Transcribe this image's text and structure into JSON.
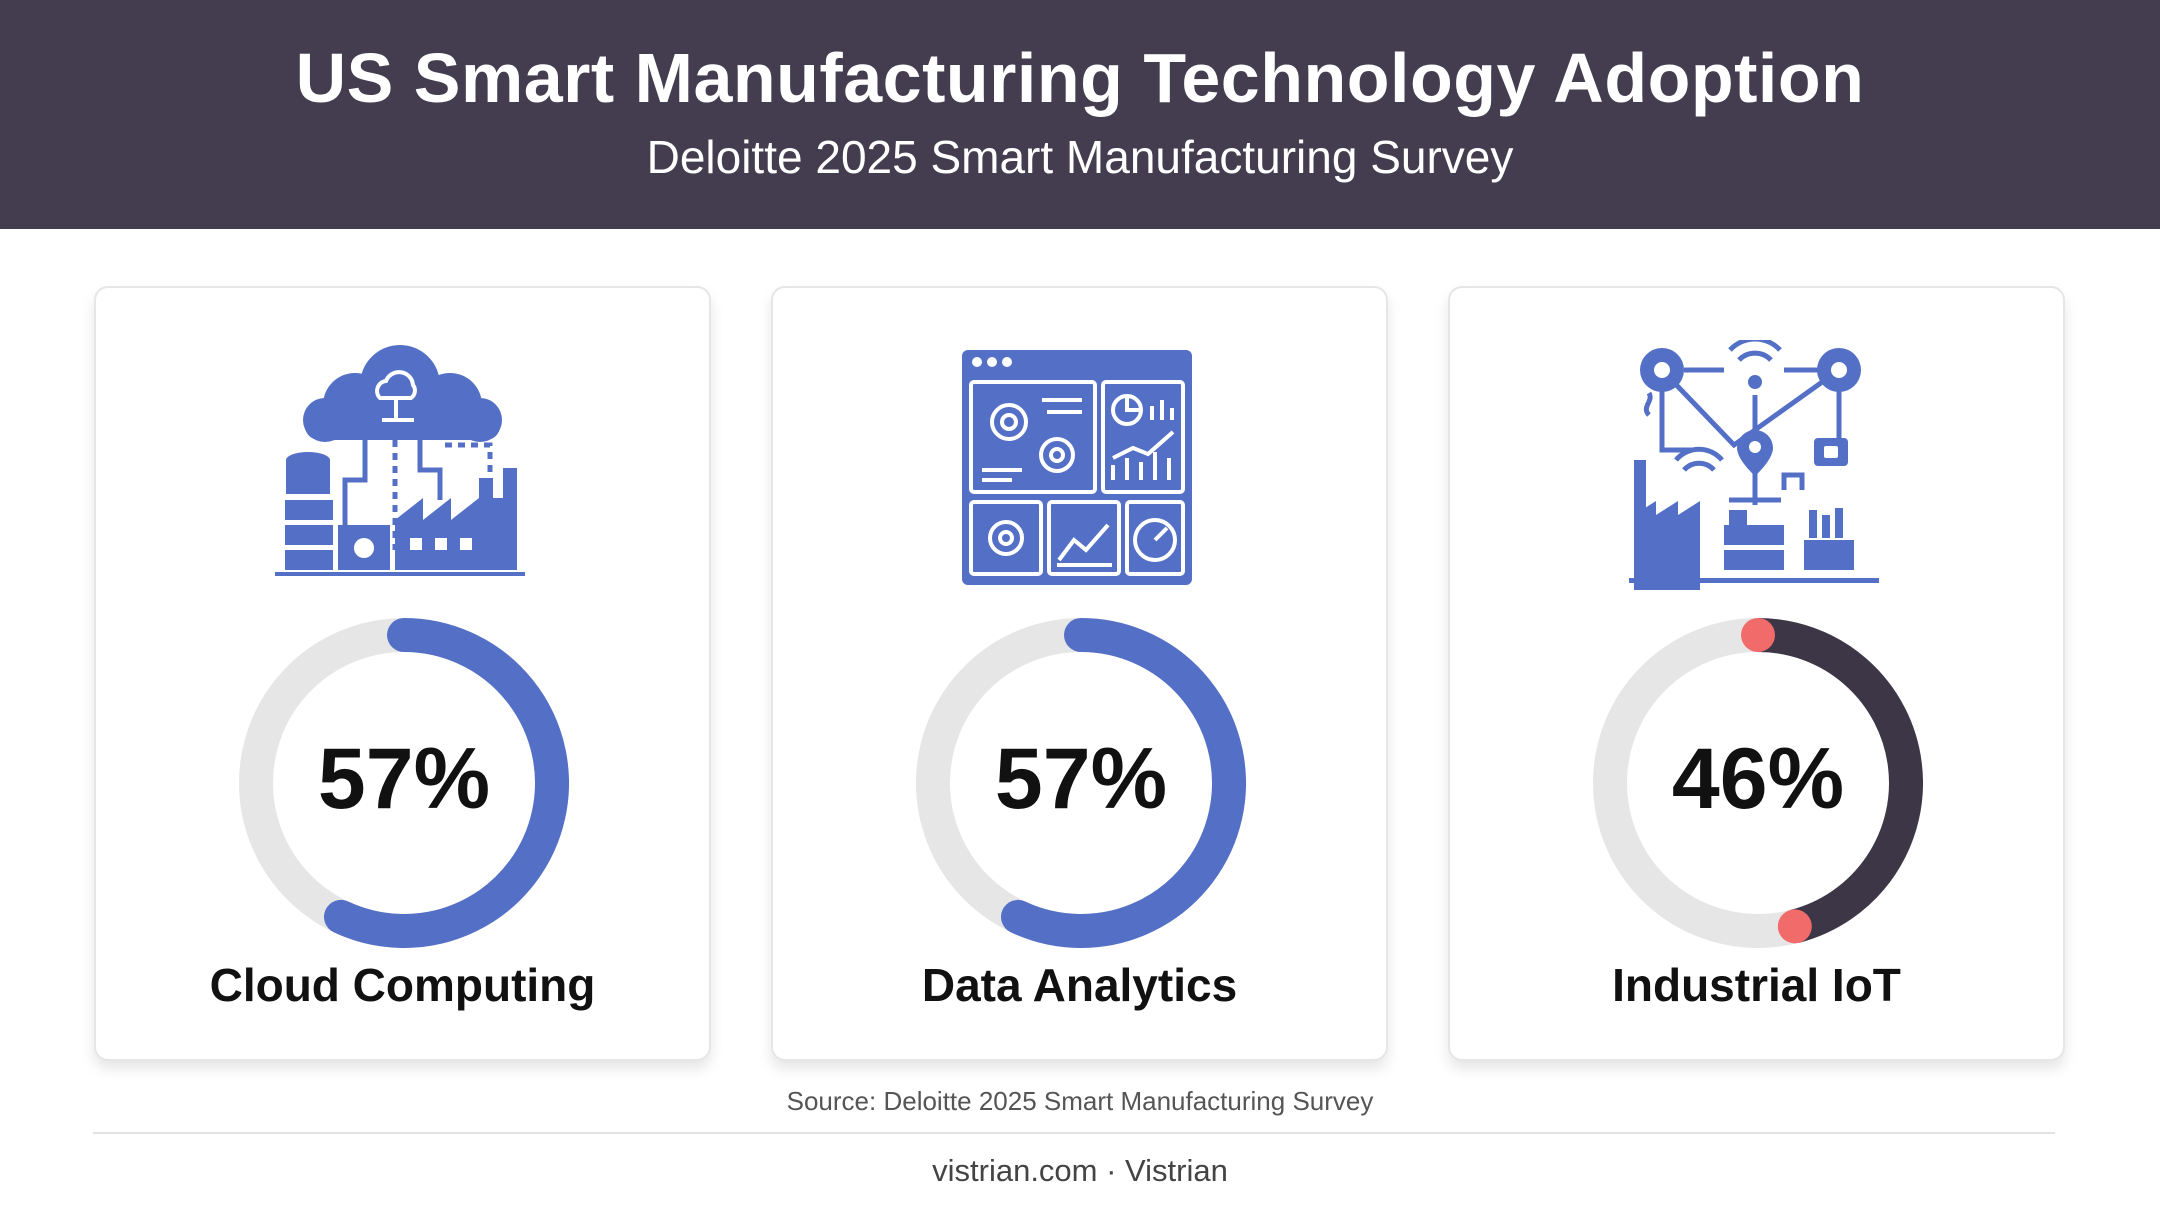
{
  "header": {
    "title": "US Smart Manufacturing Technology Adoption",
    "subtitle": "Deloitte 2025 Smart Manufacturing Survey"
  },
  "chart_data": {
    "type": "donut",
    "title": "US Smart Manufacturing Technology Adoption",
    "subtitle": "Deloitte 2025 Smart Manufacturing Survey",
    "categories": [
      "Cloud Computing",
      "Data Analytics",
      "Industrial IoT"
    ],
    "values": [
      57,
      57,
      46
    ],
    "unit": "%",
    "items": [
      {
        "label": "Cloud Computing",
        "value": 57,
        "value_label": "57%",
        "color": "#5470c6",
        "icon": "cloud-factory-icon"
      },
      {
        "label": "Data Analytics",
        "value": 57,
        "value_label": "57%",
        "color": "#5470c6",
        "icon": "analytics-dashboard-icon"
      },
      {
        "label": "Industrial IoT",
        "value": 46,
        "value_label": "46%",
        "color": "#3d3647",
        "endpoint_color": "#f26b6b",
        "icon": "iot-network-icon"
      }
    ],
    "track_color": "#e6e6e6"
  },
  "colors": {
    "header_bg": "#433d4f",
    "accent": "#5470c6",
    "dark_ring": "#3d3647",
    "highlight": "#f26b6b"
  },
  "source": "Source: Deloitte 2025 Smart Manufacturing Survey",
  "footer": "vistrian.com · Vistrian"
}
